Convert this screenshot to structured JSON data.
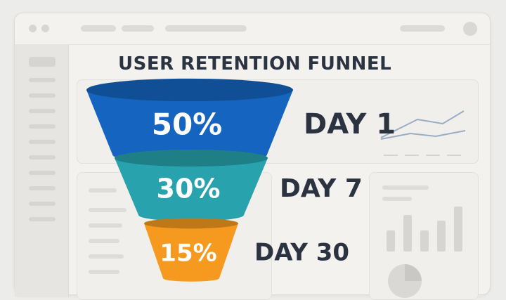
{
  "chart_data": {
    "type": "funnel",
    "title": "USER RETENTION FUNNEL",
    "stages": [
      {
        "label": "DAY 1",
        "value": 50,
        "value_label": "50%",
        "color": "#1565c0"
      },
      {
        "label": "DAY 7",
        "value": 30,
        "value_label": "30%",
        "color": "#28a3ad"
      },
      {
        "label": "DAY 30",
        "value": 15,
        "value_label": "15%",
        "color": "#f59a1e"
      }
    ]
  },
  "colors": {
    "text": "#2c3340",
    "window_bg": "#f3f2ef",
    "placeholder": "#dddcd8"
  },
  "icons": [
    "window-dot-icon",
    "avatar-icon",
    "line-chart-icon",
    "bar-chart-icon",
    "pie-chart-icon"
  ]
}
